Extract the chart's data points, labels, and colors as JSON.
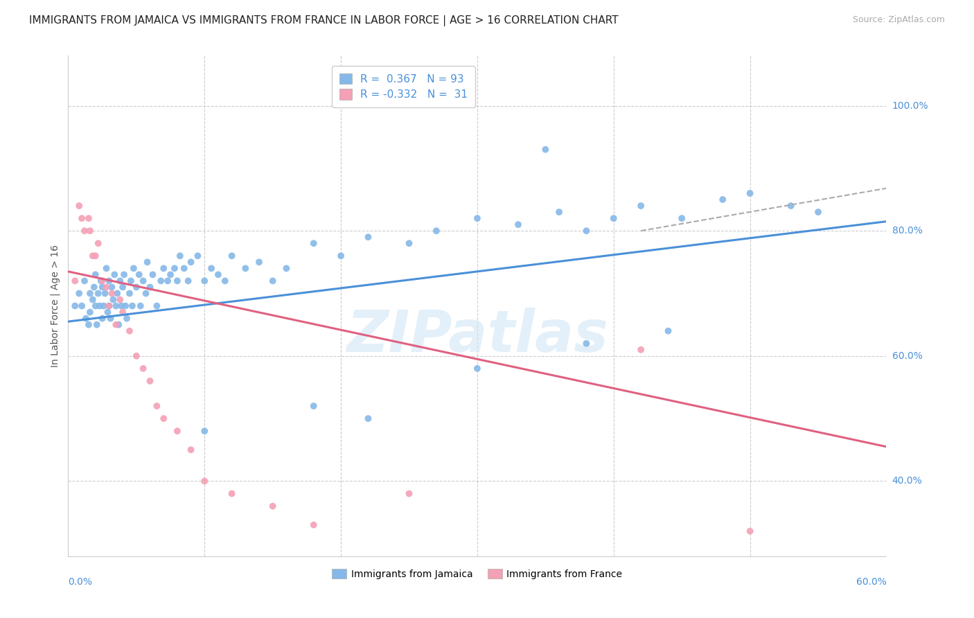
{
  "title": "IMMIGRANTS FROM JAMAICA VS IMMIGRANTS FROM FRANCE IN LABOR FORCE | AGE > 16 CORRELATION CHART",
  "source": "Source: ZipAtlas.com",
  "ylabel": "In Labor Force | Age > 16",
  "ytick_labels": [
    "40.0%",
    "60.0%",
    "80.0%",
    "100.0%"
  ],
  "ytick_values": [
    0.4,
    0.6,
    0.8,
    1.0
  ],
  "xlim": [
    0.0,
    0.6
  ],
  "ylim": [
    0.28,
    1.08
  ],
  "jamaica_color": "#85b8e8",
  "france_color": "#f4a0b5",
  "jamaica_R": 0.367,
  "jamaica_N": 93,
  "france_R": -0.332,
  "france_N": 31,
  "legend_jamaica": "Immigrants from Jamaica",
  "legend_france": "Immigrants from France",
  "jamaica_scatter_x": [
    0.005,
    0.008,
    0.01,
    0.012,
    0.013,
    0.015,
    0.016,
    0.016,
    0.018,
    0.019,
    0.02,
    0.02,
    0.021,
    0.022,
    0.023,
    0.024,
    0.025,
    0.025,
    0.026,
    0.027,
    0.028,
    0.029,
    0.03,
    0.03,
    0.031,
    0.032,
    0.033,
    0.034,
    0.035,
    0.036,
    0.037,
    0.038,
    0.039,
    0.04,
    0.041,
    0.042,
    0.043,
    0.045,
    0.046,
    0.047,
    0.048,
    0.05,
    0.052,
    0.053,
    0.055,
    0.057,
    0.058,
    0.06,
    0.062,
    0.065,
    0.068,
    0.07,
    0.073,
    0.075,
    0.078,
    0.08,
    0.082,
    0.085,
    0.088,
    0.09,
    0.095,
    0.1,
    0.105,
    0.11,
    0.115,
    0.12,
    0.13,
    0.14,
    0.15,
    0.16,
    0.18,
    0.2,
    0.22,
    0.25,
    0.27,
    0.3,
    0.33,
    0.36,
    0.38,
    0.4,
    0.42,
    0.45,
    0.48,
    0.5,
    0.53,
    0.55,
    0.22,
    0.3,
    0.18,
    0.38,
    0.1,
    0.44,
    0.35
  ],
  "jamaica_scatter_y": [
    0.68,
    0.7,
    0.68,
    0.72,
    0.66,
    0.65,
    0.7,
    0.67,
    0.69,
    0.71,
    0.68,
    0.73,
    0.65,
    0.7,
    0.68,
    0.72,
    0.66,
    0.71,
    0.68,
    0.7,
    0.74,
    0.67,
    0.72,
    0.68,
    0.66,
    0.71,
    0.69,
    0.73,
    0.68,
    0.7,
    0.65,
    0.72,
    0.68,
    0.71,
    0.73,
    0.68,
    0.66,
    0.7,
    0.72,
    0.68,
    0.74,
    0.71,
    0.73,
    0.68,
    0.72,
    0.7,
    0.75,
    0.71,
    0.73,
    0.68,
    0.72,
    0.74,
    0.72,
    0.73,
    0.74,
    0.72,
    0.76,
    0.74,
    0.72,
    0.75,
    0.76,
    0.72,
    0.74,
    0.73,
    0.72,
    0.76,
    0.74,
    0.75,
    0.72,
    0.74,
    0.78,
    0.76,
    0.79,
    0.78,
    0.8,
    0.82,
    0.81,
    0.83,
    0.8,
    0.82,
    0.84,
    0.82,
    0.85,
    0.86,
    0.84,
    0.83,
    0.5,
    0.58,
    0.52,
    0.62,
    0.48,
    0.64,
    0.93
  ],
  "france_scatter_x": [
    0.005,
    0.008,
    0.01,
    0.012,
    0.015,
    0.016,
    0.018,
    0.02,
    0.022,
    0.025,
    0.028,
    0.03,
    0.032,
    0.035,
    0.038,
    0.04,
    0.045,
    0.05,
    0.055,
    0.06,
    0.065,
    0.07,
    0.08,
    0.09,
    0.1,
    0.12,
    0.15,
    0.18,
    0.25,
    0.42,
    0.5
  ],
  "france_scatter_y": [
    0.72,
    0.84,
    0.82,
    0.8,
    0.82,
    0.8,
    0.76,
    0.76,
    0.78,
    0.72,
    0.71,
    0.68,
    0.7,
    0.65,
    0.69,
    0.67,
    0.64,
    0.6,
    0.58,
    0.56,
    0.52,
    0.5,
    0.48,
    0.45,
    0.4,
    0.38,
    0.36,
    0.33,
    0.38,
    0.61,
    0.32
  ],
  "jamaica_line_x0": 0.0,
  "jamaica_line_x1": 0.6,
  "jamaica_line_y0": 0.655,
  "jamaica_line_y1": 0.815,
  "france_line_x0": 0.0,
  "france_line_x1": 0.6,
  "france_line_y0": 0.735,
  "france_line_y1": 0.455,
  "dash_line_x0": 0.42,
  "dash_line_x1": 0.6,
  "dash_line_y0": 0.8,
  "dash_line_y1": 0.868,
  "title_fontsize": 11,
  "source_fontsize": 9,
  "tick_label_fontsize": 10,
  "legend_fontsize": 10,
  "r_legend_fontsize": 11
}
